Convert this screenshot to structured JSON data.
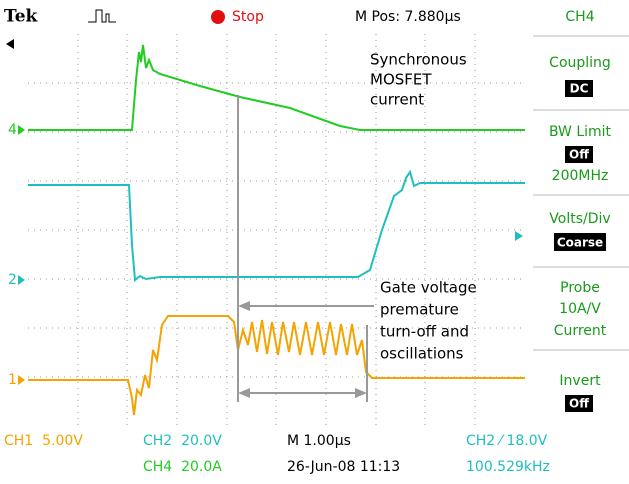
{
  "header": {
    "brand": "Tek",
    "state": "Stop",
    "position": "M Pos: 7.880µs",
    "channel": "CH4"
  },
  "side_menu": [
    {
      "label": "Coupling",
      "value": "DC"
    },
    {
      "label": "BW Limit",
      "value": "Off",
      "note": "200MHz"
    },
    {
      "label": "Volts/Div",
      "value": "Coarse"
    },
    {
      "label": "Probe",
      "lines": [
        "10A/V",
        "Current"
      ]
    },
    {
      "label": "Invert",
      "value": "Off"
    }
  ],
  "markers": [
    "4",
    "2",
    "1"
  ],
  "annotations": {
    "top": [
      "Synchronous",
      "MOSFET",
      "current"
    ],
    "bottom": [
      "Gate voltage",
      "premature",
      "turn-off and",
      "oscillations"
    ]
  },
  "footer": {
    "ch1": "CH1  5.00V",
    "ch2": "CH2  20.0V",
    "timebase": "M 1.00µs",
    "trigger": "CH2 ⁄ 18.0V",
    "ch4": "CH4  20.0A",
    "date": "26-Jun-08 11:13",
    "frequency": "100.529kHz"
  }
}
